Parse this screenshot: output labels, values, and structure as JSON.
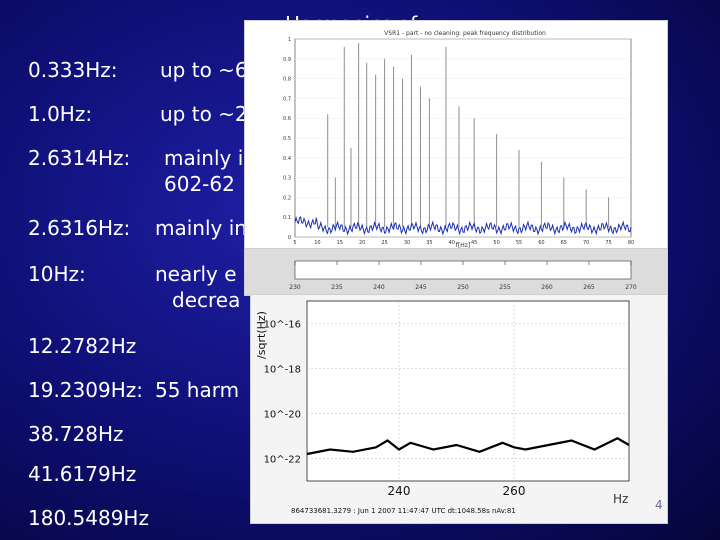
{
  "slide": {
    "title": "Harmonics of",
    "rows": [
      {
        "freq": "0.333Hz:",
        "text": "up to ~6"
      },
      {
        "freq": "1.0Hz:",
        "text": "up to ~2"
      },
      {
        "freq": "2.6314Hz:",
        "text": "mainly i",
        "text2": "602-62"
      },
      {
        "freq": "2.6316Hz:",
        "text": "mainly in"
      },
      {
        "freq": "10Hz:",
        "text": "nearly e",
        "text2": "decrea"
      },
      {
        "freq": "12.2782Hz",
        "text": ""
      },
      {
        "freq": "19.2309Hz:",
        "text": "55 harm"
      },
      {
        "freq": "38.728Hz",
        "text": ""
      },
      {
        "freq": "41.6179Hz",
        "text": ""
      },
      {
        "freq": "180.5489Hz",
        "text": ""
      }
    ]
  },
  "figures": {
    "upper_title": "VSR1 - part - no cleaning: peak frequency distribution",
    "lower_caption": "864733681.3279 : Jun 1 2007 11:47:47 UTC dt:1048.58s nAv:81",
    "lower_ylabel": "/sqrt(Hz)",
    "lower_xunit": "Hz",
    "slide_number": "4"
  },
  "chart_data": [
    {
      "type": "line",
      "title": "VSR1 - part - no cleaning: peak frequency distribution",
      "xlabel": "f[Hz]",
      "xlim": [
        5,
        80
      ],
      "ylim": [
        0,
        1
      ],
      "x_ticks": [
        5,
        10,
        15,
        20,
        25,
        30,
        35,
        40,
        45,
        50,
        55,
        60,
        65,
        70,
        75,
        80
      ],
      "y_ticks": [
        0,
        0.1,
        0.2,
        0.3,
        0.4,
        0.5,
        0.6,
        0.7,
        0.8,
        0.9,
        1
      ],
      "peaks": [
        {
          "x": 12.3,
          "y": 0.62
        },
        {
          "x": 14.0,
          "y": 0.3
        },
        {
          "x": 16.0,
          "y": 0.96
        },
        {
          "x": 17.5,
          "y": 0.45
        },
        {
          "x": 19.2,
          "y": 0.98
        },
        {
          "x": 21.0,
          "y": 0.88
        },
        {
          "x": 23.0,
          "y": 0.82
        },
        {
          "x": 25.0,
          "y": 0.9
        },
        {
          "x": 27.0,
          "y": 0.86
        },
        {
          "x": 29.0,
          "y": 0.8
        },
        {
          "x": 31.0,
          "y": 0.92
        },
        {
          "x": 33.0,
          "y": 0.76
        },
        {
          "x": 35.0,
          "y": 0.7
        },
        {
          "x": 38.7,
          "y": 0.96
        },
        {
          "x": 41.6,
          "y": 0.66
        },
        {
          "x": 45.0,
          "y": 0.6
        },
        {
          "x": 50.0,
          "y": 0.52
        },
        {
          "x": 55.0,
          "y": 0.44
        },
        {
          "x": 60.0,
          "y": 0.38
        },
        {
          "x": 65.0,
          "y": 0.3
        },
        {
          "x": 70.0,
          "y": 0.24
        },
        {
          "x": 75.0,
          "y": 0.2
        }
      ]
    },
    {
      "type": "line",
      "xlim": [
        230,
        270
      ],
      "x_ticks": [
        230,
        235,
        240,
        245,
        250,
        255,
        260,
        265,
        270
      ],
      "note": "frequency axis strip"
    },
    {
      "type": "line",
      "title": "",
      "xlabel": "Hz",
      "ylabel": "/sqrt(Hz)",
      "log_y": true,
      "y_ticks": [
        "10^-16",
        "10^-18",
        "10^-20",
        "10^-22"
      ],
      "x_ticks": [
        240,
        260
      ],
      "xlim": [
        224,
        280
      ],
      "ylim": [
        -23,
        -15
      ],
      "series": [
        {
          "x": [
            224,
            228,
            232,
            236,
            238,
            240,
            242,
            246,
            250,
            254,
            258,
            260,
            262,
            266,
            270,
            274,
            278,
            280
          ],
          "y": [
            -21.8,
            -21.6,
            -21.7,
            -21.5,
            -21.2,
            -21.6,
            -21.3,
            -21.6,
            -21.4,
            -21.7,
            -21.3,
            -21.5,
            -21.6,
            -21.4,
            -21.2,
            -21.6,
            -21.1,
            -21.4
          ]
        }
      ]
    }
  ]
}
